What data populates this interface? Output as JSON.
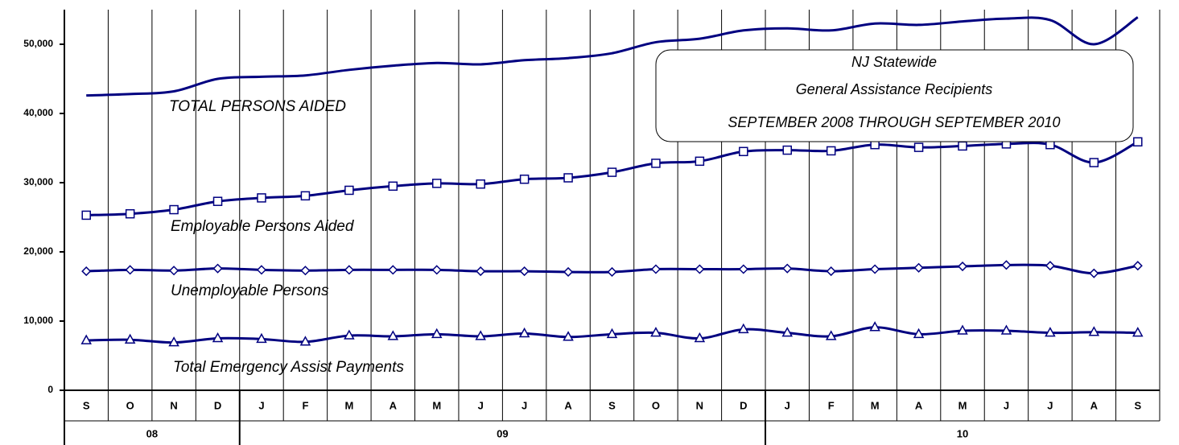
{
  "chart_data": {
    "type": "line",
    "title": [
      "NJ Statewide",
      "General Assistance Recipients",
      "SEPTEMBER 2008 THROUGH SEPTEMBER 2010"
    ],
    "categories": [
      "S",
      "O",
      "N",
      "D",
      "J",
      "F",
      "M",
      "A",
      "M",
      "J",
      "J",
      "A",
      "S",
      "O",
      "N",
      "D",
      "J",
      "F",
      "M",
      "A",
      "M",
      "J",
      "J",
      "A",
      "S"
    ],
    "year_groups": [
      {
        "label": "08",
        "span": 4
      },
      {
        "label": "09",
        "span": 12
      },
      {
        "label": "10",
        "span": 9
      }
    ],
    "ylim": [
      0,
      55000
    ],
    "yticks": [
      0,
      {
        "value": 10000,
        "label": "10,000"
      },
      {
        "value": 20000,
        "label": "20,000"
      },
      {
        "value": 30000,
        "label": "30,000"
      },
      {
        "value": 40000,
        "label": "40,000"
      },
      {
        "value": 50000,
        "label": "50,000"
      }
    ],
    "grid": "vertical",
    "series": [
      {
        "name": "TOTAL PERSONS AIDED",
        "color": "#000080",
        "marker": "none",
        "values": [
          42600,
          42800,
          43200,
          45000,
          45300,
          45500,
          46300,
          46900,
          47300,
          47100,
          47700,
          48000,
          48700,
          50300,
          50800,
          52000,
          52300,
          52000,
          53000,
          52800,
          53300,
          53700,
          53500,
          50000,
          53900
        ]
      },
      {
        "name": "Employable Persons Aided",
        "color": "#000080",
        "marker": "square",
        "values": [
          25300,
          25500,
          26100,
          27300,
          27800,
          28100,
          28900,
          29500,
          29900,
          29800,
          30500,
          30700,
          31500,
          32800,
          33100,
          34500,
          34700,
          34600,
          35500,
          35100,
          35300,
          35600,
          35500,
          32900,
          35900
        ]
      },
      {
        "name": "Unemployable Persons",
        "color": "#000080",
        "marker": "diamond",
        "values": [
          17200,
          17400,
          17300,
          17600,
          17400,
          17300,
          17400,
          17400,
          17400,
          17200,
          17200,
          17100,
          17100,
          17500,
          17500,
          17500,
          17600,
          17200,
          17500,
          17700,
          17900,
          18100,
          18000,
          16900,
          18000
        ]
      },
      {
        "name": "Total Emergency Assist Payments",
        "color": "#000080",
        "marker": "triangle",
        "values": [
          7200,
          7300,
          6900,
          7500,
          7400,
          7000,
          7900,
          7800,
          8100,
          7800,
          8200,
          7700,
          8100,
          8300,
          7500,
          8800,
          8300,
          7800,
          9100,
          8100,
          8600,
          8600,
          8300,
          8400,
          8300
        ]
      }
    ]
  }
}
